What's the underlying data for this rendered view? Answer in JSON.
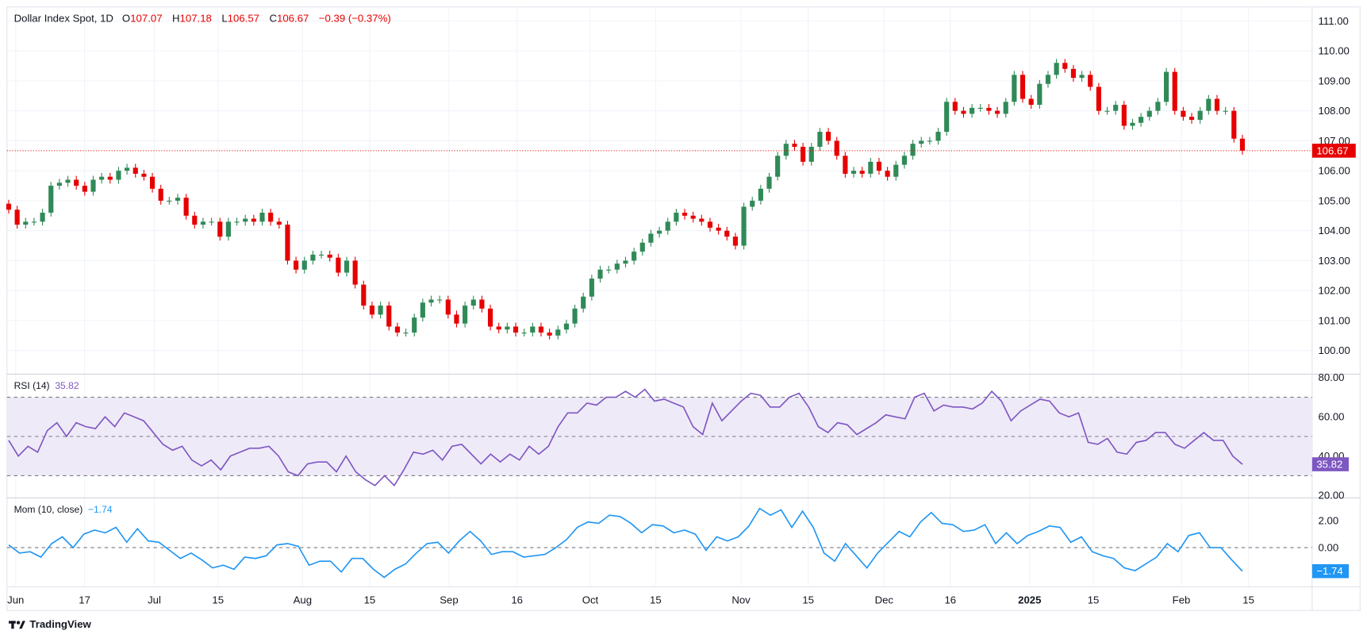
{
  "header": {
    "symbol": "Dollar Index Spot, 1D",
    "o_label": "O",
    "open": "107.07",
    "h_label": "H",
    "high": "107.18",
    "l_label": "L",
    "low": "106.57",
    "c_label": "C",
    "close": "106.67",
    "change": "−0.39 (−0.37%)"
  },
  "rsi_label": {
    "name": "RSI (14)",
    "value": "35.82"
  },
  "mom_label": {
    "name": "Mom (10, close)",
    "value": "−1.74"
  },
  "last_price_tag": "106.67",
  "rsi_tag": "35.82",
  "mom_tag": "−1.74",
  "branding": "TradingView",
  "colors": {
    "up": "#2f8a57",
    "down": "#e60000",
    "rsi": "#7e57c2",
    "mom": "#2196f3",
    "rsi_band": "#efeaf8"
  },
  "chart_data": [
    {
      "type": "candlestick",
      "title": "Dollar Index Spot, 1D",
      "y_ticks": [
        "111.00",
        "110.00",
        "109.00",
        "108.00",
        "107.00",
        "106.00",
        "105.00",
        "104.00",
        "103.00",
        "102.00",
        "101.00",
        "100.00"
      ],
      "ylim": [
        99.8,
        111.4
      ],
      "x_ticks": [
        "Jun",
        "17",
        "Jul",
        "15",
        "Aug",
        "15",
        "Sep",
        "16",
        "Oct",
        "15",
        "Nov",
        "15",
        "Dec",
        "16",
        "2025",
        "15",
        "Feb",
        "15"
      ],
      "last_price": 106.67,
      "close": [
        104.7,
        104.2,
        104.3,
        104.3,
        104.6,
        105.5,
        105.6,
        105.7,
        105.5,
        105.3,
        105.7,
        105.8,
        105.7,
        106.0,
        106.1,
        105.9,
        105.8,
        105.4,
        105.0,
        105.0,
        105.1,
        104.5,
        104.2,
        104.3,
        104.3,
        103.8,
        104.3,
        104.3,
        104.4,
        104.3,
        104.6,
        104.3,
        104.2,
        103.0,
        102.7,
        103.0,
        103.2,
        103.2,
        103.1,
        102.6,
        103.0,
        102.2,
        101.5,
        101.2,
        101.5,
        100.8,
        100.6,
        100.6,
        101.1,
        101.6,
        101.7,
        101.7,
        101.2,
        100.9,
        101.5,
        101.7,
        101.4,
        100.8,
        100.7,
        100.8,
        100.6,
        100.6,
        100.8,
        100.6,
        100.5,
        100.7,
        100.9,
        101.4,
        101.8,
        102.4,
        102.7,
        102.7,
        102.9,
        103.0,
        103.3,
        103.6,
        103.9,
        104.0,
        104.3,
        104.6,
        104.5,
        104.4,
        104.3,
        104.1,
        104.0,
        103.8,
        103.5,
        104.8,
        105.0,
        105.4,
        105.8,
        106.5,
        106.9,
        106.8,
        106.3,
        106.8,
        107.3,
        107.0,
        106.5,
        105.9,
        106.0,
        105.9,
        106.3,
        106.0,
        105.8,
        106.2,
        106.5,
        106.9,
        107.0,
        107.0,
        107.3,
        108.3,
        108.0,
        107.9,
        108.1,
        108.1,
        108.0,
        107.9,
        108.3,
        109.2,
        108.4,
        108.2,
        108.9,
        109.2,
        109.6,
        109.4,
        109.1,
        109.2,
        108.8,
        108.0,
        108.0,
        108.2,
        107.5,
        107.6,
        107.8,
        108.0,
        108.3,
        109.3,
        108.0,
        107.8,
        107.7,
        108.0,
        108.4,
        108.0,
        108.0,
        107.07,
        106.67
      ]
    },
    {
      "type": "line",
      "title": "RSI (14)",
      "y_ticks": [
        "80.00",
        "60.00",
        "40.00",
        "20.00"
      ],
      "ylim": [
        18,
        82
      ],
      "bands": [
        30,
        50,
        70
      ],
      "values": [
        48,
        40,
        45,
        42,
        53,
        57,
        50,
        57,
        55,
        54,
        60,
        55,
        62,
        60,
        58,
        52,
        46,
        43,
        45,
        38,
        35,
        38,
        33,
        40,
        42,
        44,
        44,
        45,
        40,
        32,
        30,
        36,
        37,
        37,
        32,
        40,
        32,
        28,
        25,
        30,
        25,
        33,
        42,
        41,
        43,
        38,
        45,
        46,
        41,
        36,
        41,
        37,
        41,
        38,
        45,
        41,
        45,
        55,
        62,
        62,
        67,
        66,
        70,
        70,
        73,
        70,
        74,
        68,
        69,
        67,
        65,
        55,
        51,
        67,
        58,
        63,
        68,
        72,
        71,
        65,
        65,
        70,
        72,
        65,
        55,
        52,
        57,
        56,
        51,
        54,
        57,
        61,
        60,
        59,
        70,
        72,
        63,
        66,
        65,
        65,
        64,
        67,
        73,
        68,
        58,
        63,
        66,
        69,
        68,
        62,
        60,
        62,
        47,
        46,
        49,
        42,
        41,
        47,
        48,
        52,
        52,
        46,
        44,
        48,
        52,
        48,
        48,
        40,
        35.82
      ]
    },
    {
      "type": "line",
      "title": "Mom (10, close)",
      "y_ticks": [
        "2.00",
        "0.00"
      ],
      "ylim": [
        -2.6,
        3.4
      ],
      "zero_line": 0,
      "values": [
        0.2,
        -0.4,
        -0.3,
        -0.7,
        0.3,
        0.8,
        0,
        1.0,
        1.3,
        1.1,
        1.5,
        0.4,
        1.4,
        0.5,
        0.4,
        -0.2,
        -0.8,
        -0.4,
        -0.9,
        -1.5,
        -1.3,
        -1.6,
        -0.7,
        -0.8,
        -0.6,
        0.2,
        0.3,
        0.1,
        -1.3,
        -1.0,
        -1.0,
        -1.8,
        -0.8,
        -0.8,
        -1.6,
        -2.2,
        -1.6,
        -1.2,
        -0.4,
        0.3,
        0.4,
        -0.4,
        0.5,
        1.2,
        0.5,
        -0.5,
        -0.3,
        -0.3,
        -0.7,
        -0.6,
        -0.5,
        0,
        0.6,
        1.5,
        1.9,
        1.8,
        2.4,
        2.3,
        1.8,
        1.1,
        1.7,
        1.6,
        1.1,
        1.3,
        1.0,
        -0.2,
        0.8,
        0.5,
        0.8,
        1.6,
        2.9,
        2.4,
        2.8,
        1.5,
        2.7,
        1.5,
        -0.4,
        -1.0,
        0.3,
        -0.6,
        -1.5,
        -0.4,
        0.4,
        1.2,
        0.8,
        1.9,
        2.6,
        1.8,
        1.7,
        1.2,
        1.3,
        1.7,
        0.3,
        1.1,
        0.3,
        0.9,
        1.2,
        1.6,
        1.5,
        0.4,
        0.8,
        -0.3,
        -0.6,
        -0.8,
        -1.5,
        -1.7,
        -1.2,
        -0.7,
        0.3,
        -0.3,
        0.9,
        1.1,
        0,
        0,
        -0.9,
        -1.74
      ]
    }
  ]
}
